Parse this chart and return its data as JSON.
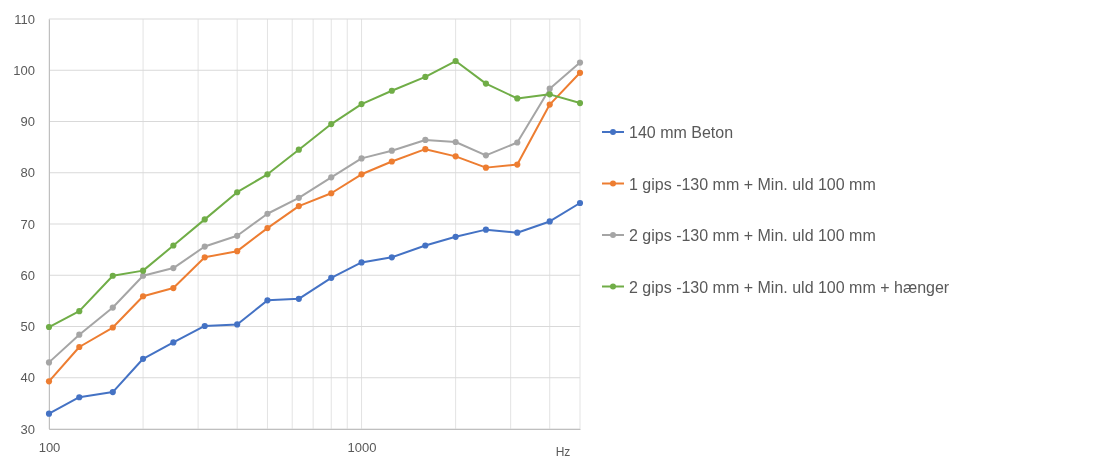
{
  "chart_data": {
    "type": "line",
    "xlabel": "Hz",
    "log": "x",
    "grid": true,
    "legend": "right",
    "marker": "circle",
    "line_style": "solid",
    "x": [
      100,
      125,
      160,
      200,
      250,
      315,
      400,
      500,
      630,
      800,
      1000,
      1250,
      1600,
      2000,
      2500,
      3150,
      4000,
      5000
    ],
    "xlim": [
      100,
      5000
    ],
    "xticks": [
      100,
      {
        "value": 200,
        "label": null
      },
      {
        "value": 300,
        "label": null
      },
      {
        "value": 400,
        "label": null
      },
      {
        "value": 500,
        "label": null
      },
      {
        "value": 600,
        "label": null
      },
      {
        "value": 700,
        "label": null
      },
      {
        "value": 800,
        "label": null
      },
      {
        "value": 900,
        "label": null
      },
      1000,
      {
        "value": 2000,
        "label": null
      },
      {
        "value": 3000,
        "label": null
      },
      {
        "value": 4000,
        "label": null
      },
      {
        "value": 5000,
        "label": null
      }
    ],
    "ylim": [
      30,
      110
    ],
    "yticks": [
      30,
      40,
      50,
      60,
      70,
      80,
      90,
      100,
      110
    ],
    "series": [
      {
        "name": "140 mm Beton",
        "color": "#4472c4",
        "values": [
          33.0,
          36.2,
          37.2,
          43.7,
          46.9,
          50.1,
          50.4,
          55.1,
          55.4,
          59.5,
          62.5,
          63.5,
          65.8,
          67.5,
          68.9,
          68.3,
          70.5,
          74.1
        ]
      },
      {
        "name": "1 gips -130 mm + Min. uld 100 mm",
        "color": "#ed7d31",
        "values": [
          39.3,
          46.0,
          49.8,
          55.9,
          57.5,
          63.5,
          64.7,
          69.2,
          73.5,
          76.0,
          79.7,
          82.2,
          84.6,
          83.2,
          81.0,
          81.6,
          93.3,
          99.5
        ]
      },
      {
        "name": "2 gips -130 mm + Min. uld 100 mm",
        "color": "#a5a5a5",
        "values": [
          43.0,
          48.4,
          53.7,
          59.9,
          61.4,
          65.6,
          67.7,
          72.0,
          75.1,
          79.1,
          82.8,
          84.3,
          86.4,
          86.0,
          83.4,
          85.9,
          96.4,
          101.5
        ]
      },
      {
        "name": "2 gips -130 mm + Min. uld 100 mm + hænger",
        "color": "#70ad47",
        "values": [
          49.9,
          53.0,
          59.9,
          60.9,
          65.8,
          70.9,
          76.2,
          79.7,
          84.5,
          89.5,
          93.4,
          96.0,
          98.7,
          101.8,
          97.4,
          94.5,
          95.3,
          93.6
        ]
      }
    ]
  }
}
